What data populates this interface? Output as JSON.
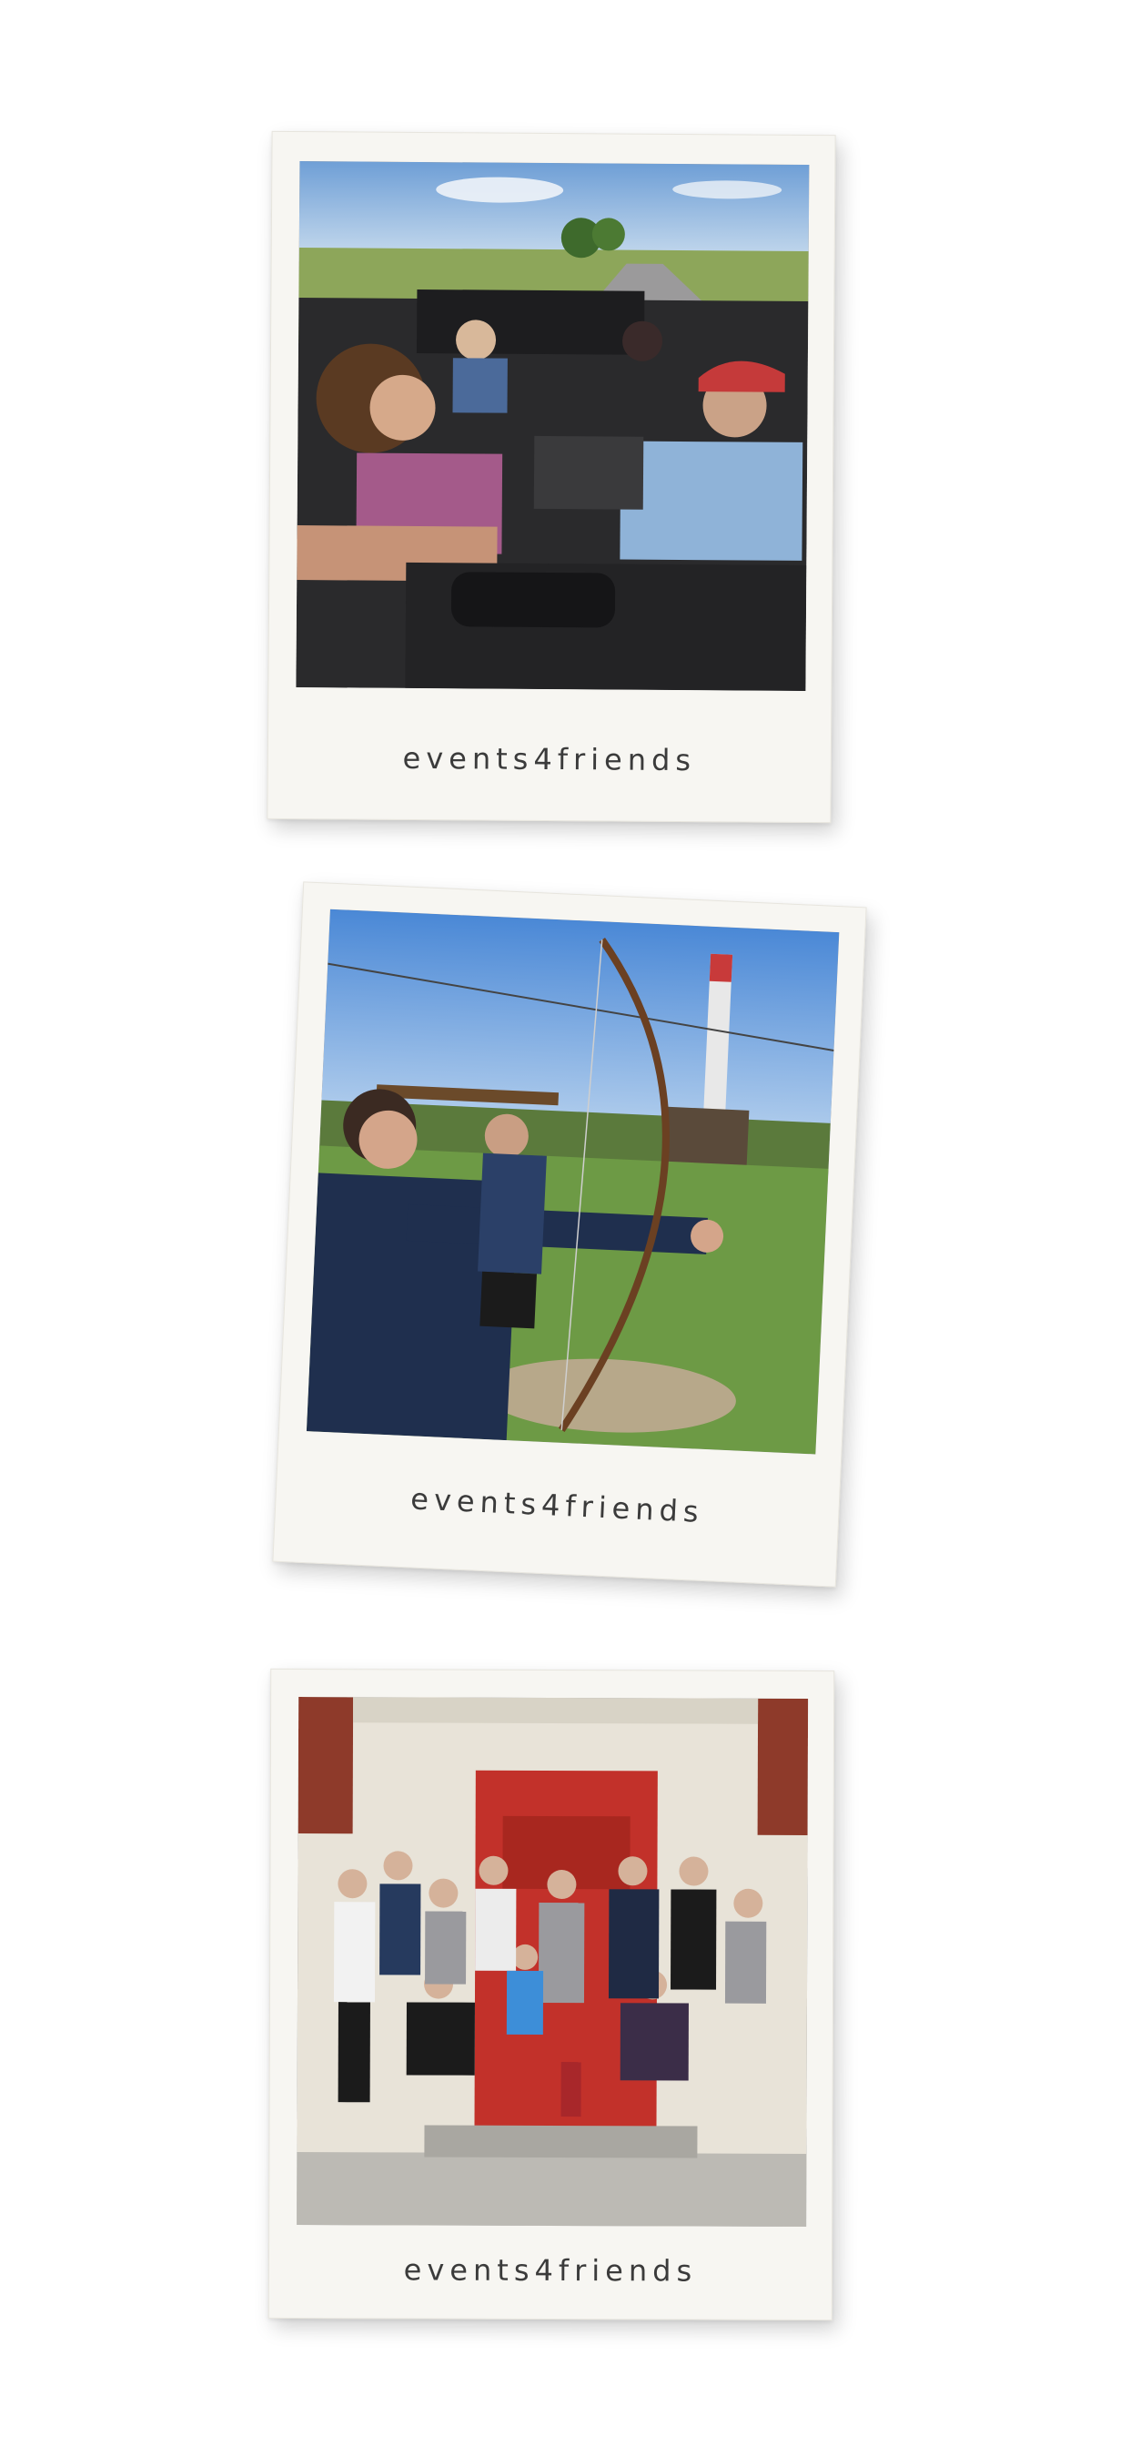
{
  "polaroids": [
    {
      "caption": "events4friends",
      "photo": "convertible-car-friends-photo"
    },
    {
      "caption": "events4friends",
      "photo": "archery-photo"
    },
    {
      "caption": "events4friends",
      "photo": "cycling-group-photo"
    }
  ]
}
